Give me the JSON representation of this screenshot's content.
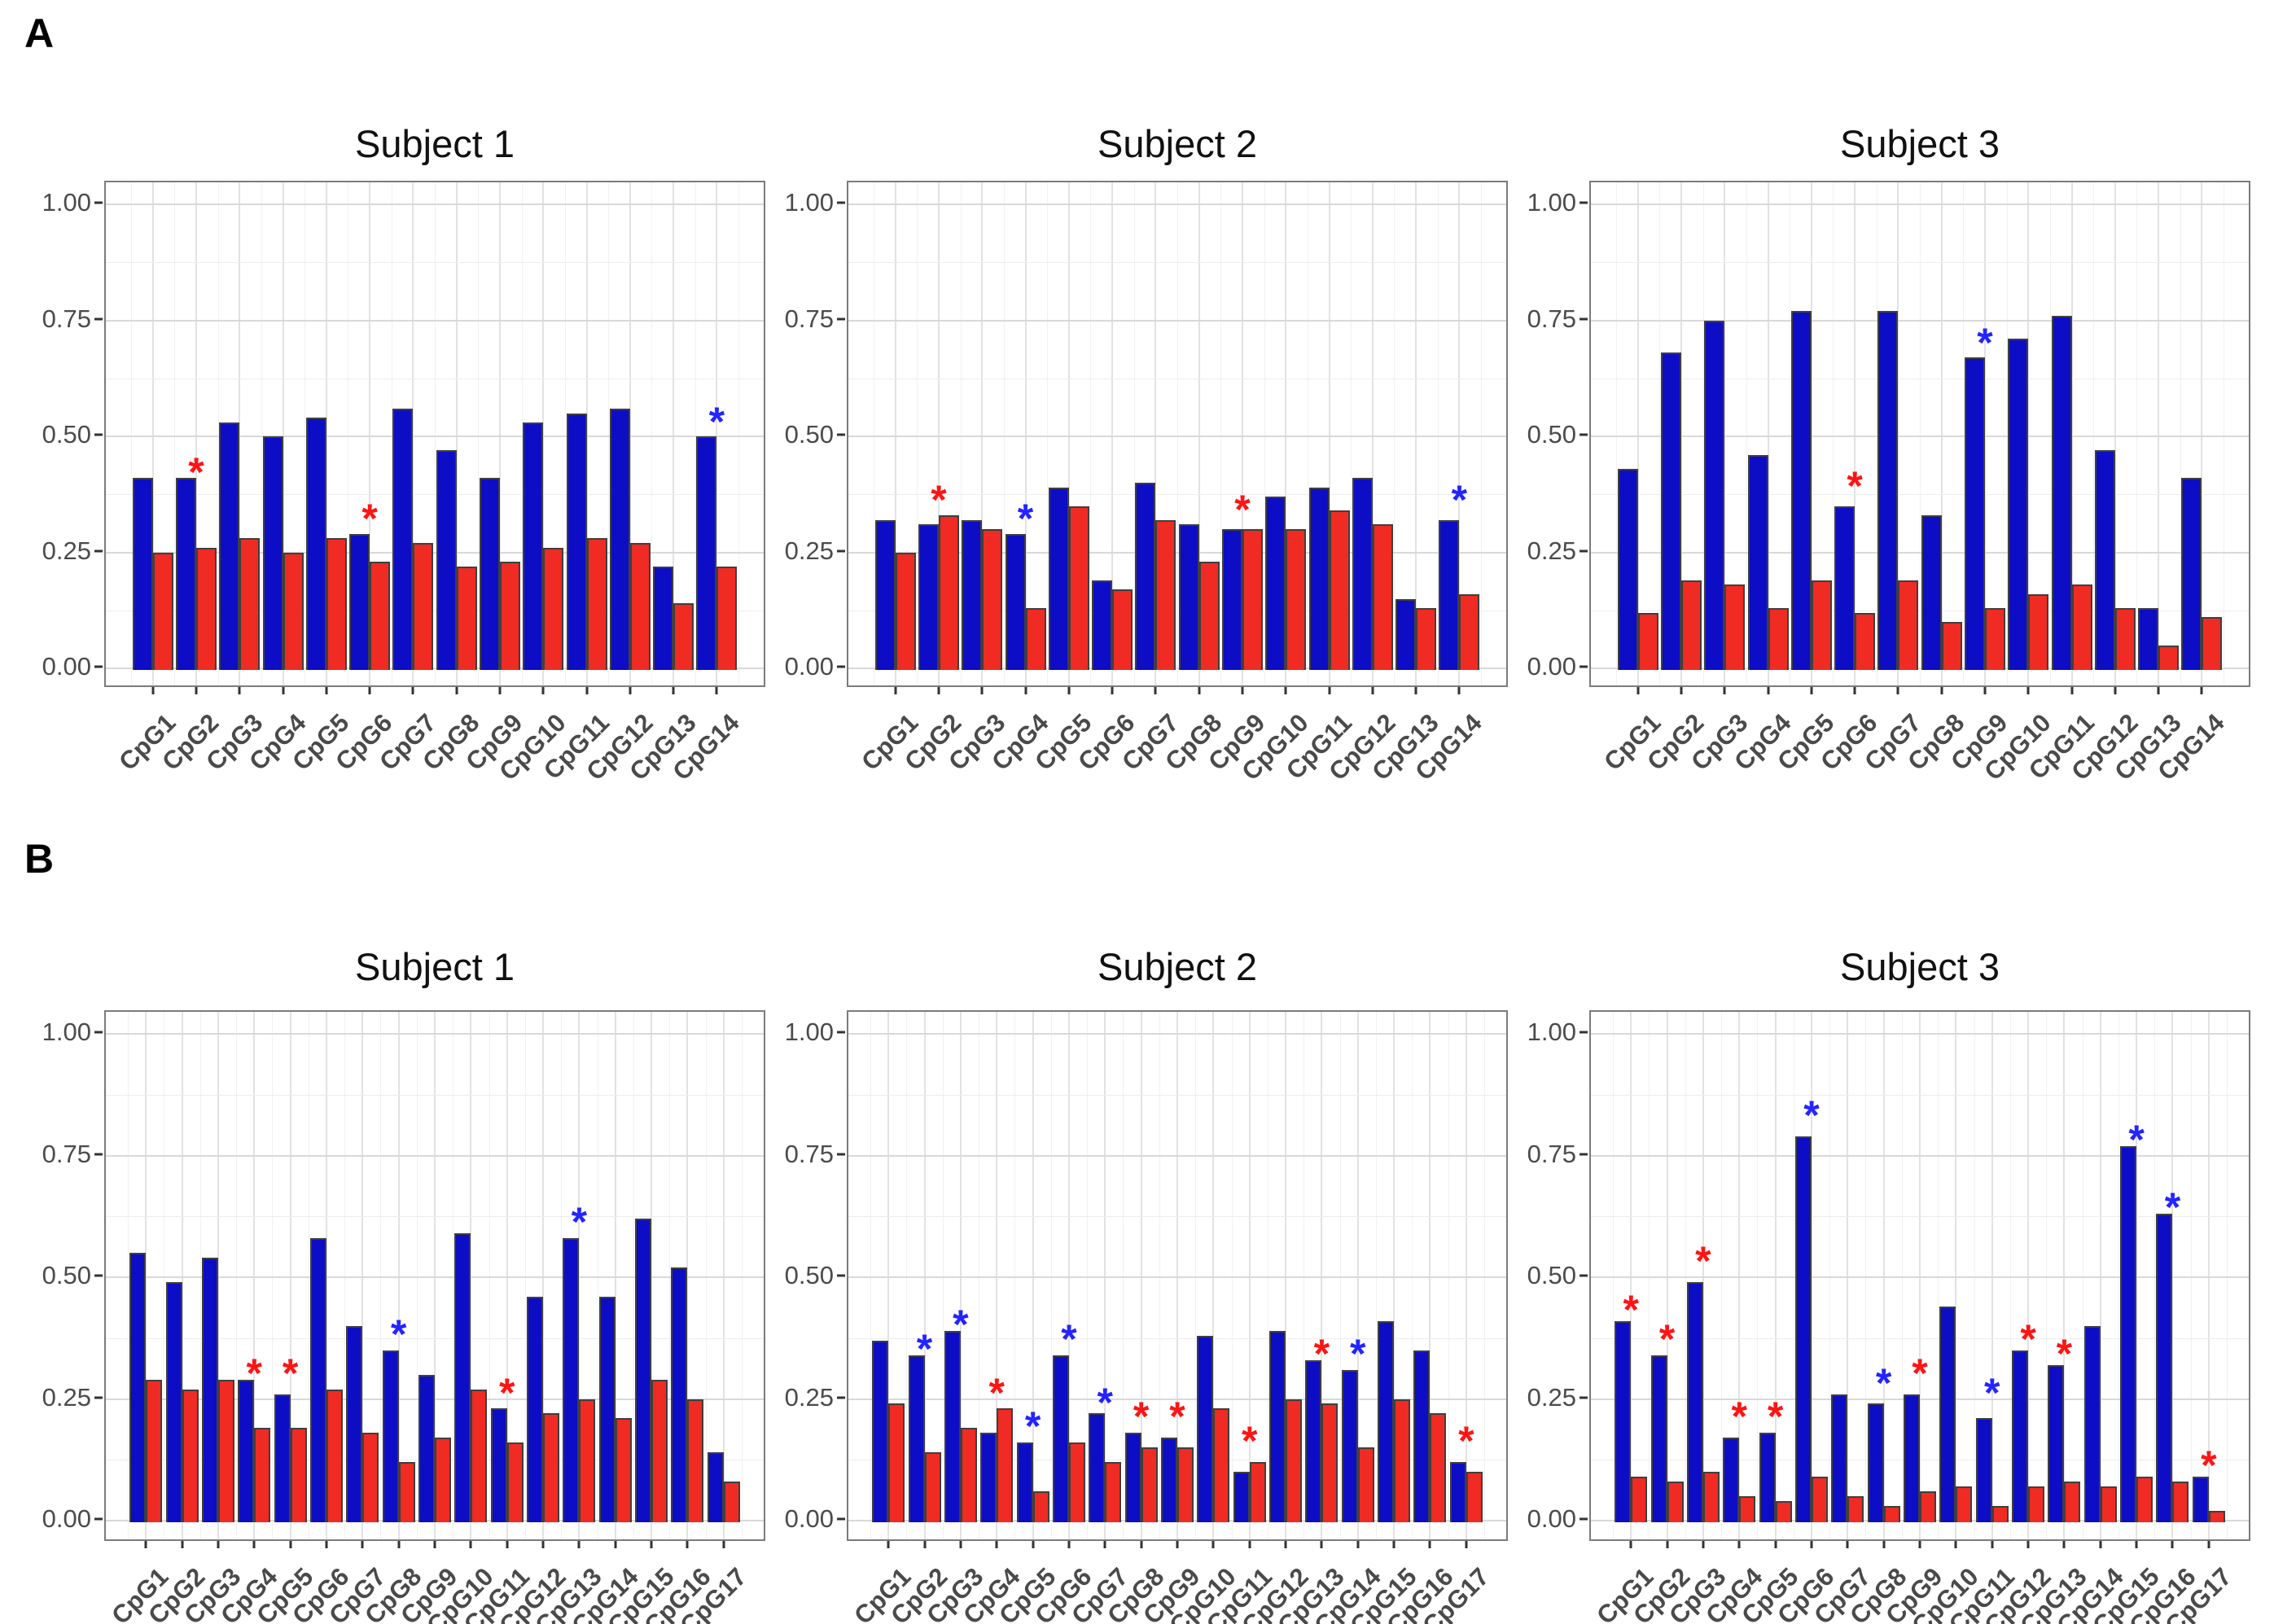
{
  "figure": {
    "panel_labels": [
      "A",
      "B"
    ],
    "y_axis": {
      "ticks": [
        {
          "value": 0.0,
          "label": "0.00"
        },
        {
          "value": 0.25,
          "label": "0.25"
        },
        {
          "value": 0.5,
          "label": "0.50"
        },
        {
          "value": 0.75,
          "label": "0.75"
        },
        {
          "value": 1.0,
          "label": "1.00"
        }
      ],
      "minor_ticks": [
        0.125,
        0.375,
        0.625,
        0.875
      ],
      "range": [
        0,
        1
      ]
    },
    "colors": {
      "bar_blue": "#0d0dc6",
      "bar_red": "#ef2b23",
      "bar_border": "#3f3f3f",
      "asterisk_red": "#ff1414",
      "asterisk_blue": "#2424ff"
    }
  },
  "chart_data": [
    {
      "panel": "A",
      "type": "bar",
      "title": "Subject 1",
      "ylim": [
        0,
        1
      ],
      "grid": true,
      "legend": "none",
      "categories": [
        "CpG1",
        "CpG2",
        "CpG3",
        "CpG4",
        "CpG5",
        "CpG6",
        "CpG7",
        "CpG8",
        "CpG9",
        "CpG10",
        "CpG11",
        "CpG12",
        "CpG13",
        "CpG14"
      ],
      "series": [
        {
          "name": "blue",
          "values": [
            0.41,
            0.41,
            0.53,
            0.5,
            0.54,
            0.29,
            0.56,
            0.47,
            0.41,
            0.53,
            0.55,
            0.56,
            0.22,
            0.5
          ]
        },
        {
          "name": "red",
          "values": [
            0.25,
            0.26,
            0.28,
            0.25,
            0.28,
            0.23,
            0.27,
            0.22,
            0.23,
            0.26,
            0.28,
            0.27,
            0.14,
            0.22
          ]
        }
      ],
      "asterisks": [
        {
          "category": "CpG2",
          "color": "red",
          "y": 0.44
        },
        {
          "category": "CpG6",
          "color": "red",
          "y": 0.34
        },
        {
          "category": "CpG14",
          "color": "blue",
          "y": 0.55
        }
      ]
    },
    {
      "panel": "A",
      "type": "bar",
      "title": "Subject 2",
      "ylim": [
        0,
        1
      ],
      "grid": true,
      "legend": "none",
      "categories": [
        "CpG1",
        "CpG2",
        "CpG3",
        "CpG4",
        "CpG5",
        "CpG6",
        "CpG7",
        "CpG8",
        "CpG9",
        "CpG10",
        "CpG11",
        "CpG12",
        "CpG13",
        "CpG14"
      ],
      "series": [
        {
          "name": "blue",
          "values": [
            0.32,
            0.31,
            0.32,
            0.29,
            0.39,
            0.19,
            0.4,
            0.31,
            0.3,
            0.37,
            0.39,
            0.41,
            0.15,
            0.32
          ]
        },
        {
          "name": "red",
          "values": [
            0.25,
            0.33,
            0.3,
            0.13,
            0.35,
            0.17,
            0.32,
            0.23,
            0.3,
            0.3,
            0.34,
            0.31,
            0.13,
            0.16
          ]
        }
      ],
      "asterisks": [
        {
          "category": "CpG2",
          "color": "red",
          "y": 0.38
        },
        {
          "category": "CpG4",
          "color": "blue",
          "y": 0.34
        },
        {
          "category": "CpG9",
          "color": "red",
          "y": 0.36
        },
        {
          "category": "CpG14",
          "color": "blue",
          "y": 0.38
        }
      ]
    },
    {
      "panel": "A",
      "type": "bar",
      "title": "Subject 3",
      "ylim": [
        0,
        1
      ],
      "grid": true,
      "legend": "none",
      "categories": [
        "CpG1",
        "CpG2",
        "CpG3",
        "CpG4",
        "CpG5",
        "CpG6",
        "CpG7",
        "CpG8",
        "CpG9",
        "CpG10",
        "CpG11",
        "CpG12",
        "CpG13",
        "CpG14"
      ],
      "series": [
        {
          "name": "blue",
          "values": [
            0.43,
            0.68,
            0.75,
            0.46,
            0.77,
            0.35,
            0.77,
            0.33,
            0.67,
            0.71,
            0.76,
            0.47,
            0.13,
            0.41
          ]
        },
        {
          "name": "red",
          "values": [
            0.12,
            0.19,
            0.18,
            0.13,
            0.19,
            0.12,
            0.19,
            0.1,
            0.13,
            0.16,
            0.18,
            0.13,
            0.05,
            0.11
          ]
        }
      ],
      "asterisks": [
        {
          "category": "CpG6",
          "color": "red",
          "y": 0.41
        },
        {
          "category": "CpG9",
          "color": "blue",
          "y": 0.72
        }
      ]
    },
    {
      "panel": "B",
      "type": "bar",
      "title": "Subject 1",
      "ylim": [
        0,
        1
      ],
      "grid": true,
      "legend": "none",
      "categories": [
        "CpG1",
        "CpG2",
        "CpG3",
        "CpG4",
        "CpG5",
        "CpG6",
        "CpG7",
        "CpG8",
        "CpG9",
        "CpG10",
        "CpG11",
        "CpG12",
        "CpG13",
        "CpG14",
        "CpG15",
        "CpG16",
        "CpG17"
      ],
      "series": [
        {
          "name": "blue",
          "values": [
            0.55,
            0.49,
            0.54,
            0.29,
            0.26,
            0.58,
            0.4,
            0.35,
            0.3,
            0.59,
            0.23,
            0.46,
            0.58,
            0.46,
            0.62,
            0.52,
            0.14
          ]
        },
        {
          "name": "red",
          "values": [
            0.29,
            0.27,
            0.29,
            0.19,
            0.19,
            0.27,
            0.18,
            0.12,
            0.17,
            0.27,
            0.16,
            0.22,
            0.25,
            0.21,
            0.29,
            0.25,
            0.08
          ]
        }
      ],
      "asterisks": [
        {
          "category": "CpG4",
          "color": "red",
          "y": 0.32
        },
        {
          "category": "CpG5",
          "color": "red",
          "y": 0.32
        },
        {
          "category": "CpG8",
          "color": "blue",
          "y": 0.4
        },
        {
          "category": "CpG11",
          "color": "red",
          "y": 0.28
        },
        {
          "category": "CpG13",
          "color": "blue",
          "y": 0.63
        }
      ]
    },
    {
      "panel": "B",
      "type": "bar",
      "title": "Subject 2",
      "ylim": [
        0,
        1
      ],
      "grid": true,
      "legend": "none",
      "categories": [
        "CpG1",
        "CpG2",
        "CpG3",
        "CpG4",
        "CpG5",
        "CpG6",
        "CpG7",
        "CpG8",
        "CpG9",
        "CpG10",
        "CpG11",
        "CpG12",
        "CpG13",
        "CpG14",
        "CpG15",
        "CpG16",
        "CpG17"
      ],
      "series": [
        {
          "name": "blue",
          "values": [
            0.37,
            0.34,
            0.39,
            0.18,
            0.16,
            0.34,
            0.22,
            0.18,
            0.17,
            0.38,
            0.1,
            0.39,
            0.33,
            0.31,
            0.41,
            0.35,
            0.12
          ]
        },
        {
          "name": "red",
          "values": [
            0.24,
            0.14,
            0.19,
            0.23,
            0.06,
            0.16,
            0.12,
            0.15,
            0.15,
            0.23,
            0.12,
            0.25,
            0.24,
            0.15,
            0.25,
            0.22,
            0.1
          ]
        }
      ],
      "asterisks": [
        {
          "category": "CpG2",
          "color": "blue",
          "y": 0.37
        },
        {
          "category": "CpG3",
          "color": "blue",
          "y": 0.42
        },
        {
          "category": "CpG4",
          "color": "red",
          "y": 0.28
        },
        {
          "category": "CpG5",
          "color": "blue",
          "y": 0.21
        },
        {
          "category": "CpG6",
          "color": "blue",
          "y": 0.39
        },
        {
          "category": "CpG7",
          "color": "blue",
          "y": 0.26
        },
        {
          "category": "CpG8",
          "color": "red",
          "y": 0.23
        },
        {
          "category": "CpG9",
          "color": "red",
          "y": 0.23
        },
        {
          "category": "CpG11",
          "color": "red",
          "y": 0.18
        },
        {
          "category": "CpG13",
          "color": "red",
          "y": 0.36
        },
        {
          "category": "CpG14",
          "color": "blue",
          "y": 0.36
        },
        {
          "category": "CpG17",
          "color": "red",
          "y": 0.18
        }
      ]
    },
    {
      "panel": "B",
      "type": "bar",
      "title": "Subject 3",
      "ylim": [
        0,
        1
      ],
      "grid": true,
      "legend": "none",
      "categories": [
        "CpG1",
        "CpG2",
        "CpG3",
        "CpG4",
        "CpG5",
        "CpG6",
        "CpG7",
        "CpG8",
        "CpG9",
        "CpG10",
        "CpG11",
        "CpG12",
        "CpG13",
        "CpG14",
        "CpG15",
        "CpG16",
        "CpG17"
      ],
      "series": [
        {
          "name": "blue",
          "values": [
            0.41,
            0.34,
            0.49,
            0.17,
            0.18,
            0.79,
            0.26,
            0.24,
            0.26,
            0.44,
            0.21,
            0.35,
            0.32,
            0.4,
            0.77,
            0.63,
            0.09
          ]
        },
        {
          "name": "red",
          "values": [
            0.09,
            0.08,
            0.1,
            0.05,
            0.04,
            0.09,
            0.05,
            0.03,
            0.06,
            0.07,
            0.03,
            0.07,
            0.08,
            0.07,
            0.09,
            0.08,
            0.02
          ]
        }
      ],
      "asterisks": [
        {
          "category": "CpG1",
          "color": "red",
          "y": 0.45
        },
        {
          "category": "CpG2",
          "color": "red",
          "y": 0.39
        },
        {
          "category": "CpG3",
          "color": "red",
          "y": 0.55
        },
        {
          "category": "CpG4",
          "color": "red",
          "y": 0.23
        },
        {
          "category": "CpG5",
          "color": "red",
          "y": 0.23
        },
        {
          "category": "CpG6",
          "color": "blue",
          "y": 0.85
        },
        {
          "category": "CpG8",
          "color": "blue",
          "y": 0.3
        },
        {
          "category": "CpG9",
          "color": "red",
          "y": 0.32
        },
        {
          "category": "CpG11",
          "color": "blue",
          "y": 0.28
        },
        {
          "category": "CpG12",
          "color": "red",
          "y": 0.39
        },
        {
          "category": "CpG13",
          "color": "red",
          "y": 0.36
        },
        {
          "category": "CpG15",
          "color": "blue",
          "y": 0.8
        },
        {
          "category": "CpG16",
          "color": "blue",
          "y": 0.66
        },
        {
          "category": "CpG17",
          "color": "red",
          "y": 0.13
        }
      ]
    }
  ]
}
